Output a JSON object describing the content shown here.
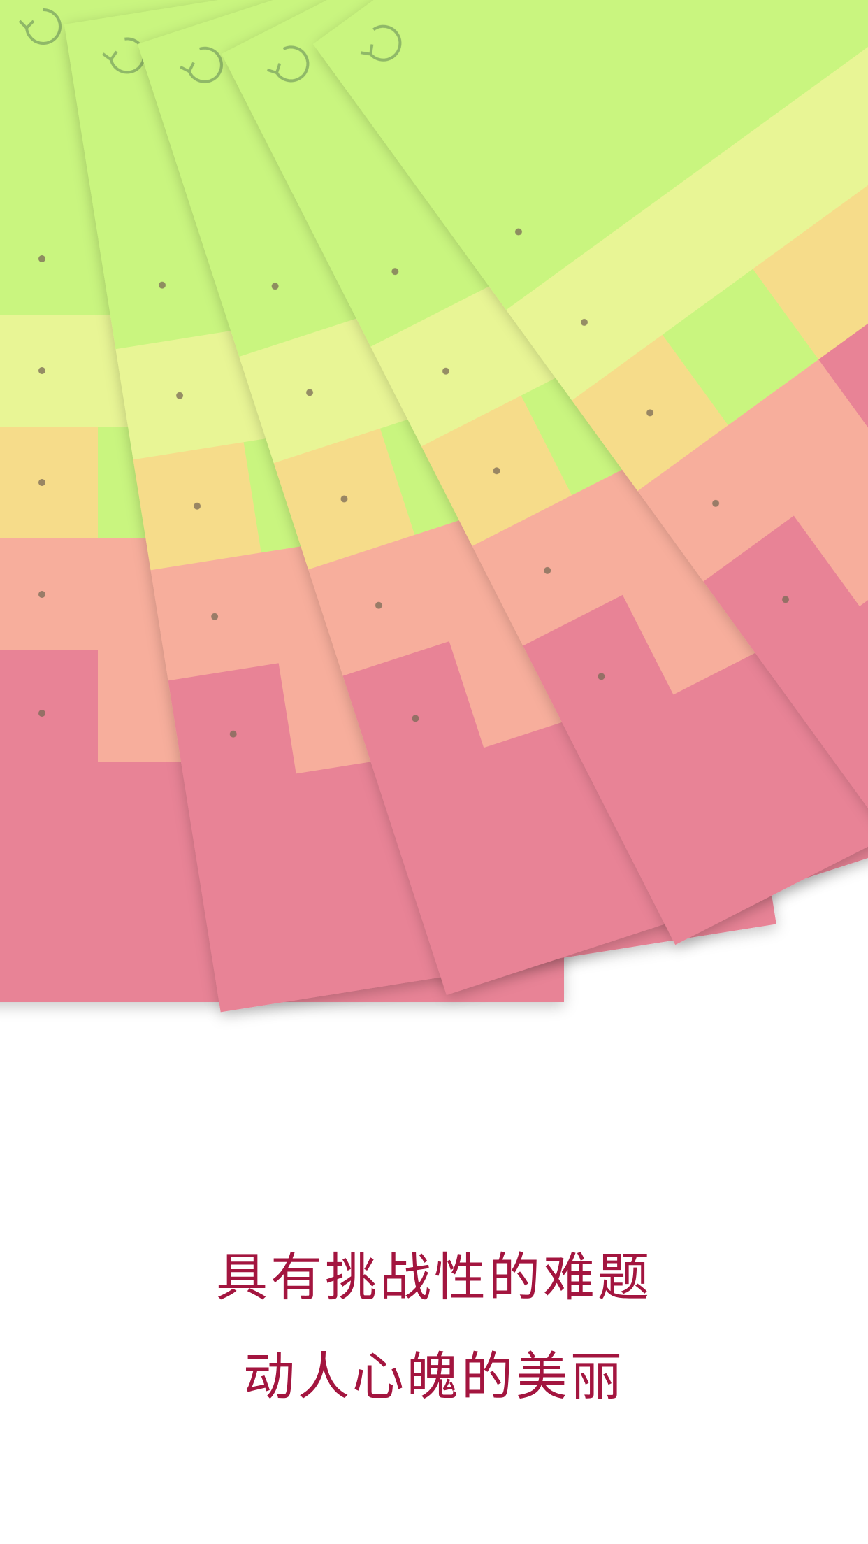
{
  "caption": {
    "line1": "具有挑战性的难题",
    "line2": "动人心魄的美丽"
  }
}
